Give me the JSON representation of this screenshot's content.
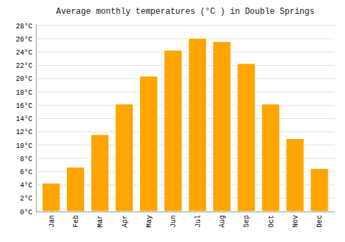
{
  "chart_data": {
    "type": "bar",
    "title": "Average monthly temperatures (°C ) in Double Springs",
    "categories": [
      "Jan",
      "Feb",
      "Mar",
      "Apr",
      "May",
      "Jun",
      "Jul",
      "Aug",
      "Sep",
      "Oct",
      "Nov",
      "Dec"
    ],
    "values": [
      4.3,
      6.7,
      11.6,
      16.2,
      20.4,
      24.3,
      26.1,
      25.6,
      22.3,
      16.2,
      11.0,
      6.5
    ],
    "color": "#FFA500",
    "ylim": [
      0,
      28.3
    ],
    "yticks": [
      {
        "value": 0,
        "label": "0°C"
      },
      {
        "value": 2,
        "label": "2°C"
      },
      {
        "value": 4,
        "label": "4°C"
      },
      {
        "value": 6,
        "label": "6°C"
      },
      {
        "value": 8,
        "label": "8°C"
      },
      {
        "value": 10,
        "label": "10°C"
      },
      {
        "value": 12,
        "label": "12°C"
      },
      {
        "value": 14,
        "label": "14°C"
      },
      {
        "value": 16,
        "label": "16°C"
      },
      {
        "value": 18,
        "label": "18°C"
      },
      {
        "value": 20,
        "label": "20°C"
      },
      {
        "value": 22,
        "label": "22°C"
      },
      {
        "value": 24,
        "label": "24°C"
      },
      {
        "value": 26,
        "label": "26°C"
      },
      {
        "value": 28,
        "label": "28°C"
      }
    ],
    "grid": true
  }
}
